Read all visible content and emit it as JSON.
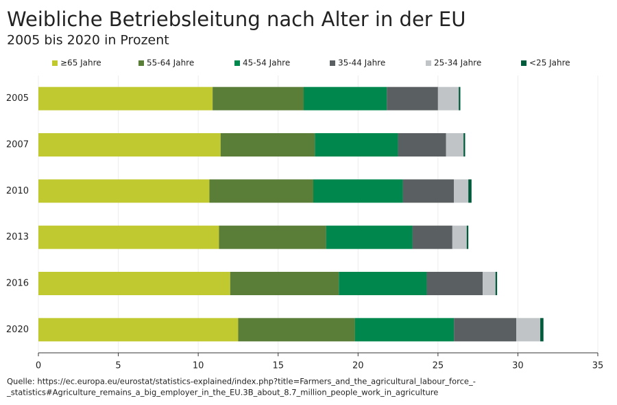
{
  "chart_data": {
    "type": "stacked_barh",
    "title": "Weibliche Betriebsleitung nach Alter in der EU",
    "subtitle": "2005 bis 2020 in Prozent",
    "categories": [
      "2005",
      "2007",
      "2010",
      "2013",
      "2016",
      "2020"
    ],
    "series": [
      {
        "name": "≥65 Jahre",
        "color": "#c0c930",
        "values": [
          10.9,
          11.4,
          10.7,
          11.3,
          12.0,
          12.5
        ]
      },
      {
        "name": "55-64 Jahre",
        "color": "#5a7d37",
        "values": [
          5.7,
          5.9,
          6.5,
          6.7,
          6.8,
          7.3
        ]
      },
      {
        "name": "45-54 Jahre",
        "color": "#00874e",
        "values": [
          5.2,
          5.2,
          5.6,
          5.4,
          5.5,
          6.2
        ]
      },
      {
        "name": "35-44 Jahre",
        "color": "#5a6062",
        "values": [
          3.2,
          3.0,
          3.2,
          2.5,
          3.5,
          3.9
        ]
      },
      {
        "name": "25-34 Jahre",
        "color": "#c0c4c6",
        "values": [
          1.3,
          1.1,
          0.9,
          0.9,
          0.8,
          1.5
        ]
      },
      {
        "name": "<25 Jahre",
        "color": "#005a3c",
        "values": [
          0.1,
          0.1,
          0.2,
          0.1,
          0.1,
          0.2
        ]
      }
    ],
    "xlim": [
      0,
      35
    ],
    "xticks": [
      0,
      5,
      10,
      15,
      20,
      25,
      30,
      35
    ],
    "grid": true,
    "source": [
      "Quelle: https://ec.europa.eu/eurostat/statistics-explained/index.php?title=Farmers_and_the_agricultural_labour_force_-",
      "_statistics#Agriculture_remains_a_big_employer_in_the_EU.3B_about_8.7_million_people_work_in_agriculture"
    ]
  }
}
